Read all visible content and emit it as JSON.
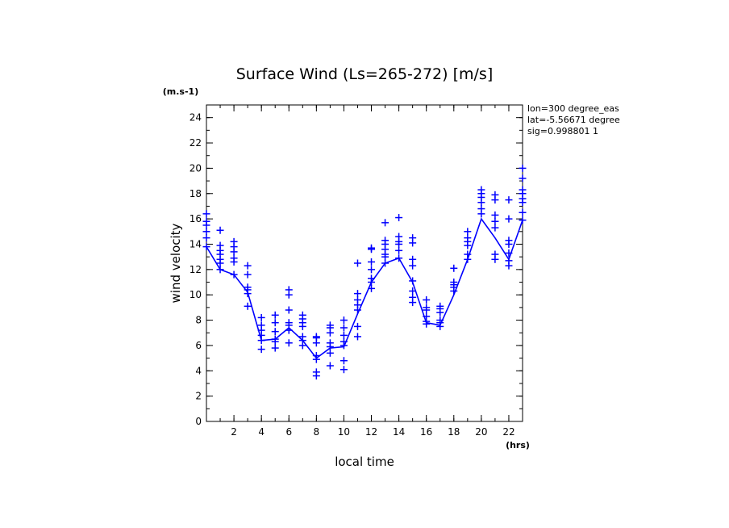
{
  "chart_data": {
    "type": "line",
    "title": "Surface Wind  (Ls=265-272) [m/s]",
    "xlabel": "local time",
    "ylabel": "wind velocity",
    "x_unit": "(hrs)",
    "y_unit": "(m.s-1)",
    "xlim": [
      0,
      23
    ],
    "ylim": [
      0,
      25
    ],
    "x_ticks": [
      2,
      4,
      6,
      8,
      10,
      12,
      14,
      16,
      18,
      20,
      22
    ],
    "y_ticks": [
      0,
      2,
      4,
      6,
      8,
      10,
      12,
      14,
      16,
      18,
      20,
      22,
      24
    ],
    "grid": false,
    "color": "#0000ff",
    "info_lines": [
      "lon=300 degree_eas",
      "lat=-5.56671 degree",
      "sig=0.998801 1"
    ],
    "line": {
      "x": [
        0,
        1,
        2,
        3,
        4,
        5,
        6,
        7,
        8,
        9,
        10,
        11,
        12,
        13,
        14,
        15,
        16,
        17,
        18,
        19,
        20,
        21,
        22,
        23
      ],
      "y": [
        13.8,
        12.0,
        11.6,
        10.2,
        6.4,
        6.5,
        7.4,
        6.4,
        5.0,
        5.8,
        5.9,
        8.5,
        11.0,
        12.5,
        12.9,
        11.0,
        7.8,
        7.6,
        10.0,
        12.8,
        16.0,
        14.5,
        12.8,
        15.9
      ]
    },
    "scatter": [
      {
        "x": 0,
        "y": [
          13.8,
          14.5,
          15.0,
          15.5,
          15.8,
          16.4
        ]
      },
      {
        "x": 1,
        "y": [
          12.0,
          12.5,
          12.8,
          13.2,
          13.5,
          13.9,
          15.1
        ]
      },
      {
        "x": 2,
        "y": [
          11.6,
          12.6,
          12.9,
          13.4,
          13.8,
          14.2
        ]
      },
      {
        "x": 3,
        "y": [
          9.1,
          10.1,
          10.4,
          10.6,
          11.6,
          12.3
        ]
      },
      {
        "x": 4,
        "y": [
          5.7,
          6.4,
          6.8,
          7.2,
          7.6,
          8.2
        ]
      },
      {
        "x": 5,
        "y": [
          5.8,
          6.3,
          6.5,
          7.1,
          7.8,
          8.4
        ]
      },
      {
        "x": 6,
        "y": [
          6.2,
          7.2,
          7.6,
          7.8,
          8.8,
          10.0,
          10.4
        ]
      },
      {
        "x": 7,
        "y": [
          6.0,
          6.4,
          6.7,
          7.5,
          7.8,
          8.1,
          8.4
        ]
      },
      {
        "x": 8,
        "y": [
          3.6,
          3.9,
          4.9,
          5.2,
          6.2,
          6.6,
          6.7
        ]
      },
      {
        "x": 9,
        "y": [
          4.4,
          5.4,
          5.9,
          6.2,
          7.0,
          7.4,
          7.6
        ]
      },
      {
        "x": 10,
        "y": [
          4.1,
          4.8,
          6.0,
          6.3,
          6.8,
          7.4,
          8.0
        ]
      },
      {
        "x": 11,
        "y": [
          6.7,
          7.5,
          8.8,
          9.2,
          9.6,
          10.1,
          12.5
        ]
      },
      {
        "x": 12,
        "y": [
          10.5,
          11.0,
          11.3,
          12.0,
          12.6,
          13.6,
          13.7
        ]
      },
      {
        "x": 13,
        "y": [
          12.5,
          13.0,
          13.2,
          13.6,
          14.0,
          14.3,
          15.7
        ]
      },
      {
        "x": 14,
        "y": [
          12.9,
          13.5,
          14.0,
          14.2,
          14.6,
          16.1
        ]
      },
      {
        "x": 15,
        "y": [
          9.4,
          9.8,
          10.3,
          11.1,
          12.3,
          12.8,
          14.1,
          14.5
        ]
      },
      {
        "x": 16,
        "y": [
          7.7,
          7.9,
          8.3,
          8.8,
          9.0,
          9.6
        ]
      },
      {
        "x": 17,
        "y": [
          7.5,
          7.8,
          8.0,
          8.6,
          8.9,
          9.1
        ]
      },
      {
        "x": 18,
        "y": [
          10.3,
          10.6,
          10.8,
          11.0,
          12.1
        ]
      },
      {
        "x": 19,
        "y": [
          12.8,
          13.2,
          13.9,
          14.2,
          14.5,
          15.0
        ]
      },
      {
        "x": 20,
        "y": [
          16.4,
          16.8,
          17.3,
          17.7,
          18.0,
          18.3
        ]
      },
      {
        "x": 21,
        "y": [
          12.8,
          13.2,
          15.3,
          15.8,
          16.3,
          17.5,
          17.9
        ]
      },
      {
        "x": 22,
        "y": [
          12.3,
          12.7,
          13.3,
          14.0,
          14.3,
          16.0,
          17.5
        ]
      },
      {
        "x": 23,
        "y": [
          15.9,
          16.5,
          17.3,
          17.6,
          18.0,
          18.3,
          19.2,
          20.0
        ]
      }
    ]
  }
}
